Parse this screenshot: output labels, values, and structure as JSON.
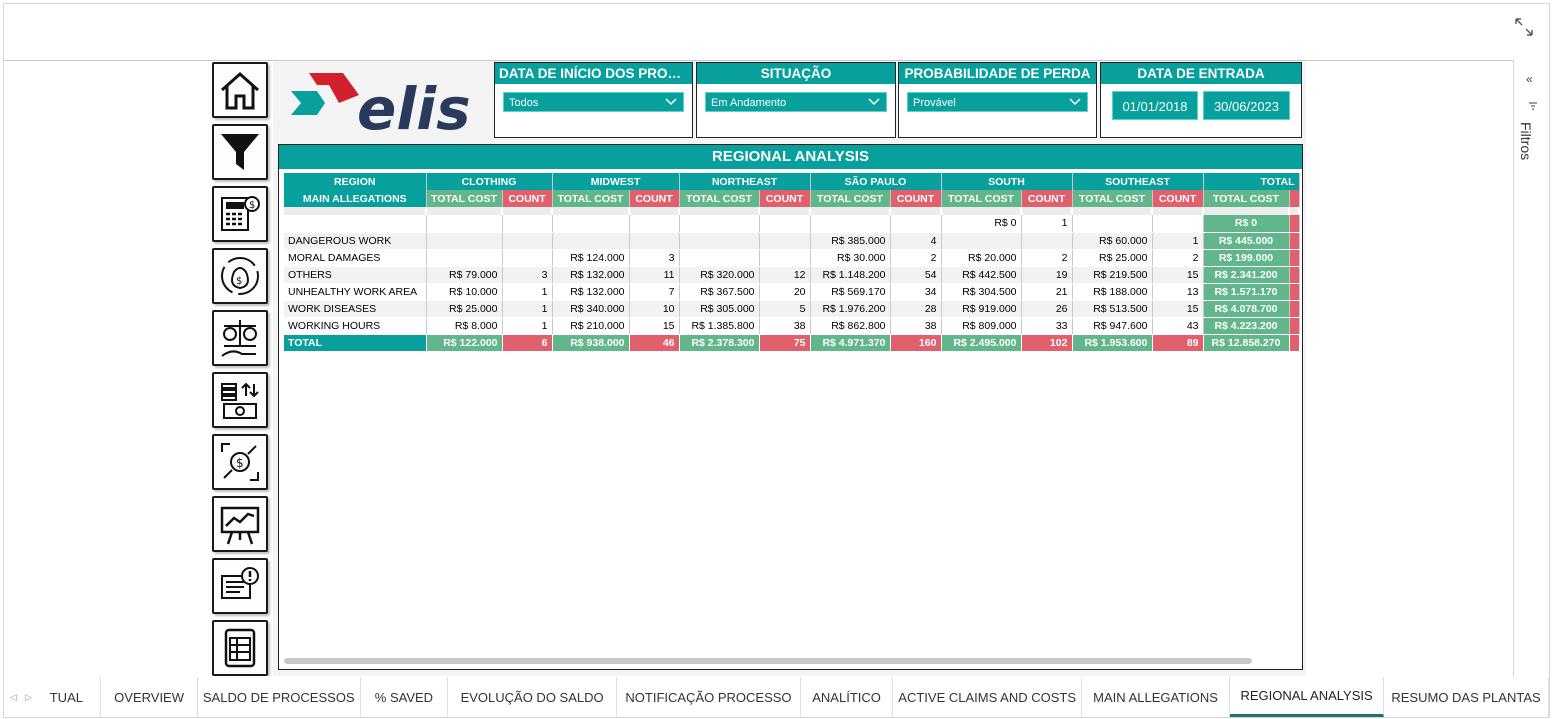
{
  "slicers": {
    "data_inicio": {
      "title": "DATA DE INÍCIO DOS PROC...",
      "value": "Todos"
    },
    "situacao": {
      "title": "SITUAÇÃO",
      "value": "Em Andamento"
    },
    "probabilidade": {
      "title": "PROBABILIDADE DE PERDA",
      "value": "Provável"
    },
    "data_entrada": {
      "title": "DATA DE ENTRADA",
      "start": "01/01/2018",
      "end": "30/06/2023"
    }
  },
  "logo": {
    "text": "elis",
    "colors": {
      "red": "#d2202f",
      "teal": "#07a09c",
      "navy": "#2a3a5c"
    }
  },
  "table": {
    "title": "REGIONAL ANALYSIS",
    "row_header": "REGION",
    "col_header": "MAIN ALLEGATIONS",
    "measure_cost": "TOTAL COST",
    "measure_count": "COUNT",
    "regions": [
      "CLOTHING",
      "MIDWEST",
      "NORTHEAST",
      "SÃO PAULO",
      "SOUTH",
      "SOUTHEAST",
      "TOTAL"
    ],
    "rows": [
      {
        "label": "",
        "cells": [
          "",
          "",
          "",
          "",
          "",
          "",
          "",
          "",
          "R$ 0",
          "1",
          "",
          ""
        ],
        "total": "R$ 0"
      },
      {
        "label": "DANGEROUS WORK",
        "cells": [
          "",
          "",
          "",
          "",
          "",
          "",
          "R$ 385.000",
          "4",
          "",
          "",
          "R$ 60.000",
          "1"
        ],
        "total": "R$ 445.000"
      },
      {
        "label": "MORAL DAMAGES",
        "cells": [
          "",
          "",
          "R$ 124.000",
          "3",
          "",
          "",
          "R$ 30.000",
          "2",
          "R$ 20.000",
          "2",
          "R$ 25.000",
          "2"
        ],
        "total": "R$ 199.000"
      },
      {
        "label": "OTHERS",
        "cells": [
          "R$ 79.000",
          "3",
          "R$ 132.000",
          "11",
          "R$ 320.000",
          "12",
          "R$ 1.148.200",
          "54",
          "R$ 442.500",
          "19",
          "R$ 219.500",
          "15"
        ],
        "total": "R$ 2.341.200"
      },
      {
        "label": "UNHEALTHY WORK AREA",
        "cells": [
          "R$ 10.000",
          "1",
          "R$ 132.000",
          "7",
          "R$ 367.500",
          "20",
          "R$ 569.170",
          "34",
          "R$ 304.500",
          "21",
          "R$ 188.000",
          "13"
        ],
        "total": "R$ 1.571.170"
      },
      {
        "label": "WORK DISEASES",
        "cells": [
          "R$ 25.000",
          "1",
          "R$ 340.000",
          "10",
          "R$ 305.000",
          "5",
          "R$ 1.976.200",
          "28",
          "R$ 919.000",
          "26",
          "R$ 513.500",
          "15"
        ],
        "total": "R$ 4.078.700"
      },
      {
        "label": "WORKING HOURS",
        "cells": [
          "R$ 8.000",
          "1",
          "R$ 210.000",
          "15",
          "R$ 1.385.800",
          "38",
          "R$ 862.800",
          "38",
          "R$ 809.000",
          "33",
          "R$ 947.600",
          "43"
        ],
        "total": "R$ 4.223.200"
      }
    ],
    "total_row": {
      "label": "TOTAL",
      "cells": [
        "R$ 122.000",
        "6",
        "R$ 938.000",
        "46",
        "R$ 2.378.300",
        "75",
        "R$ 4.971.370",
        "160",
        "R$ 2.495.000",
        "102",
        "R$ 1.953.600",
        "89"
      ],
      "total": "R$ 12.858.270"
    }
  },
  "nav_icons": [
    "home-icon",
    "filter-icon",
    "calculator-money-icon",
    "money-bag-cycle-icon",
    "balance-money-icon",
    "coins-transfer-icon",
    "money-exchange-icon",
    "presentation-chart-icon",
    "document-alert-icon",
    "table-icon"
  ],
  "filters_pane": {
    "label": "Filtros",
    "collapse": "«"
  },
  "tabs": [
    "TUAL",
    "OVERVIEW",
    "SALDO DE PROCESSOS",
    "% SAVED",
    "EVOLUÇÃO DO SALDO",
    "NOTIFICAÇÃO PROCESSO",
    "ANALÍTICO",
    "ACTIVE CLAIMS AND COSTS",
    "MAIN ALLEGATIONS",
    "REGIONAL ANALYSIS",
    "RESUMO DAS PLANTAS"
  ],
  "active_tab": "REGIONAL ANALYSIS",
  "colors": {
    "teal": "#07a09c",
    "green": "#61b68c",
    "red": "#e0606e"
  }
}
